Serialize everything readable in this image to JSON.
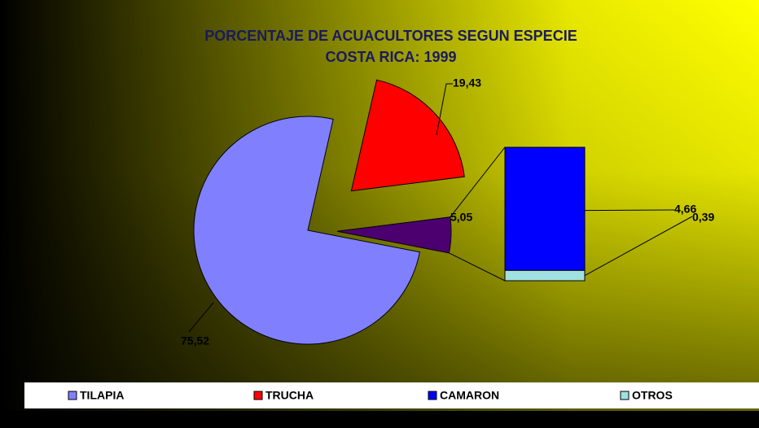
{
  "chart_data": {
    "type": "pie",
    "title": "PORCENTAJE DE  ACUACULTORES SEGUN ESPECIE",
    "subtitle": "COSTA RICA: 1999",
    "categories": [
      "TILAPIA",
      "TRUCHA",
      null
    ],
    "values": [
      75.52,
      19.43,
      5.05
    ],
    "value_labels": [
      "75,52",
      "19,43",
      "5,05"
    ],
    "colors": [
      "#8080ff",
      "#ff0000",
      "#4c0070"
    ],
    "breakout": {
      "type": "bar",
      "categories": [
        "CAMARON",
        "OTROS"
      ],
      "values": [
        4.66,
        0.39
      ],
      "value_labels": [
        "4,66",
        "0,39"
      ],
      "colors": [
        "#0000ff",
        "#a0e0e0"
      ]
    }
  }
}
